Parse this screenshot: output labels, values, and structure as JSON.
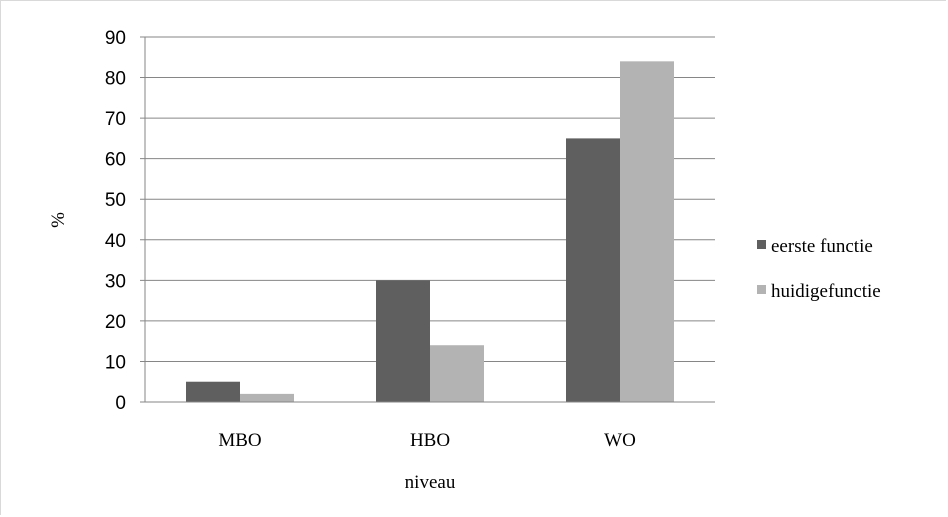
{
  "chart_data": {
    "type": "bar",
    "categories": [
      "MBO",
      "HBO",
      "WO"
    ],
    "series": [
      {
        "name": "eerste functie",
        "values": [
          5,
          30,
          65
        ],
        "color": "#5f5f5f"
      },
      {
        "name": "huidigefunctie",
        "values": [
          2,
          14,
          84
        ],
        "color": "#b3b3b3"
      }
    ],
    "xlabel": "niveau",
    "ylabel": "%",
    "ylim": [
      0,
      90
    ],
    "yticks": [
      0,
      10,
      20,
      30,
      40,
      50,
      60,
      70,
      80,
      90
    ],
    "grid": true,
    "legend_position": "right"
  }
}
